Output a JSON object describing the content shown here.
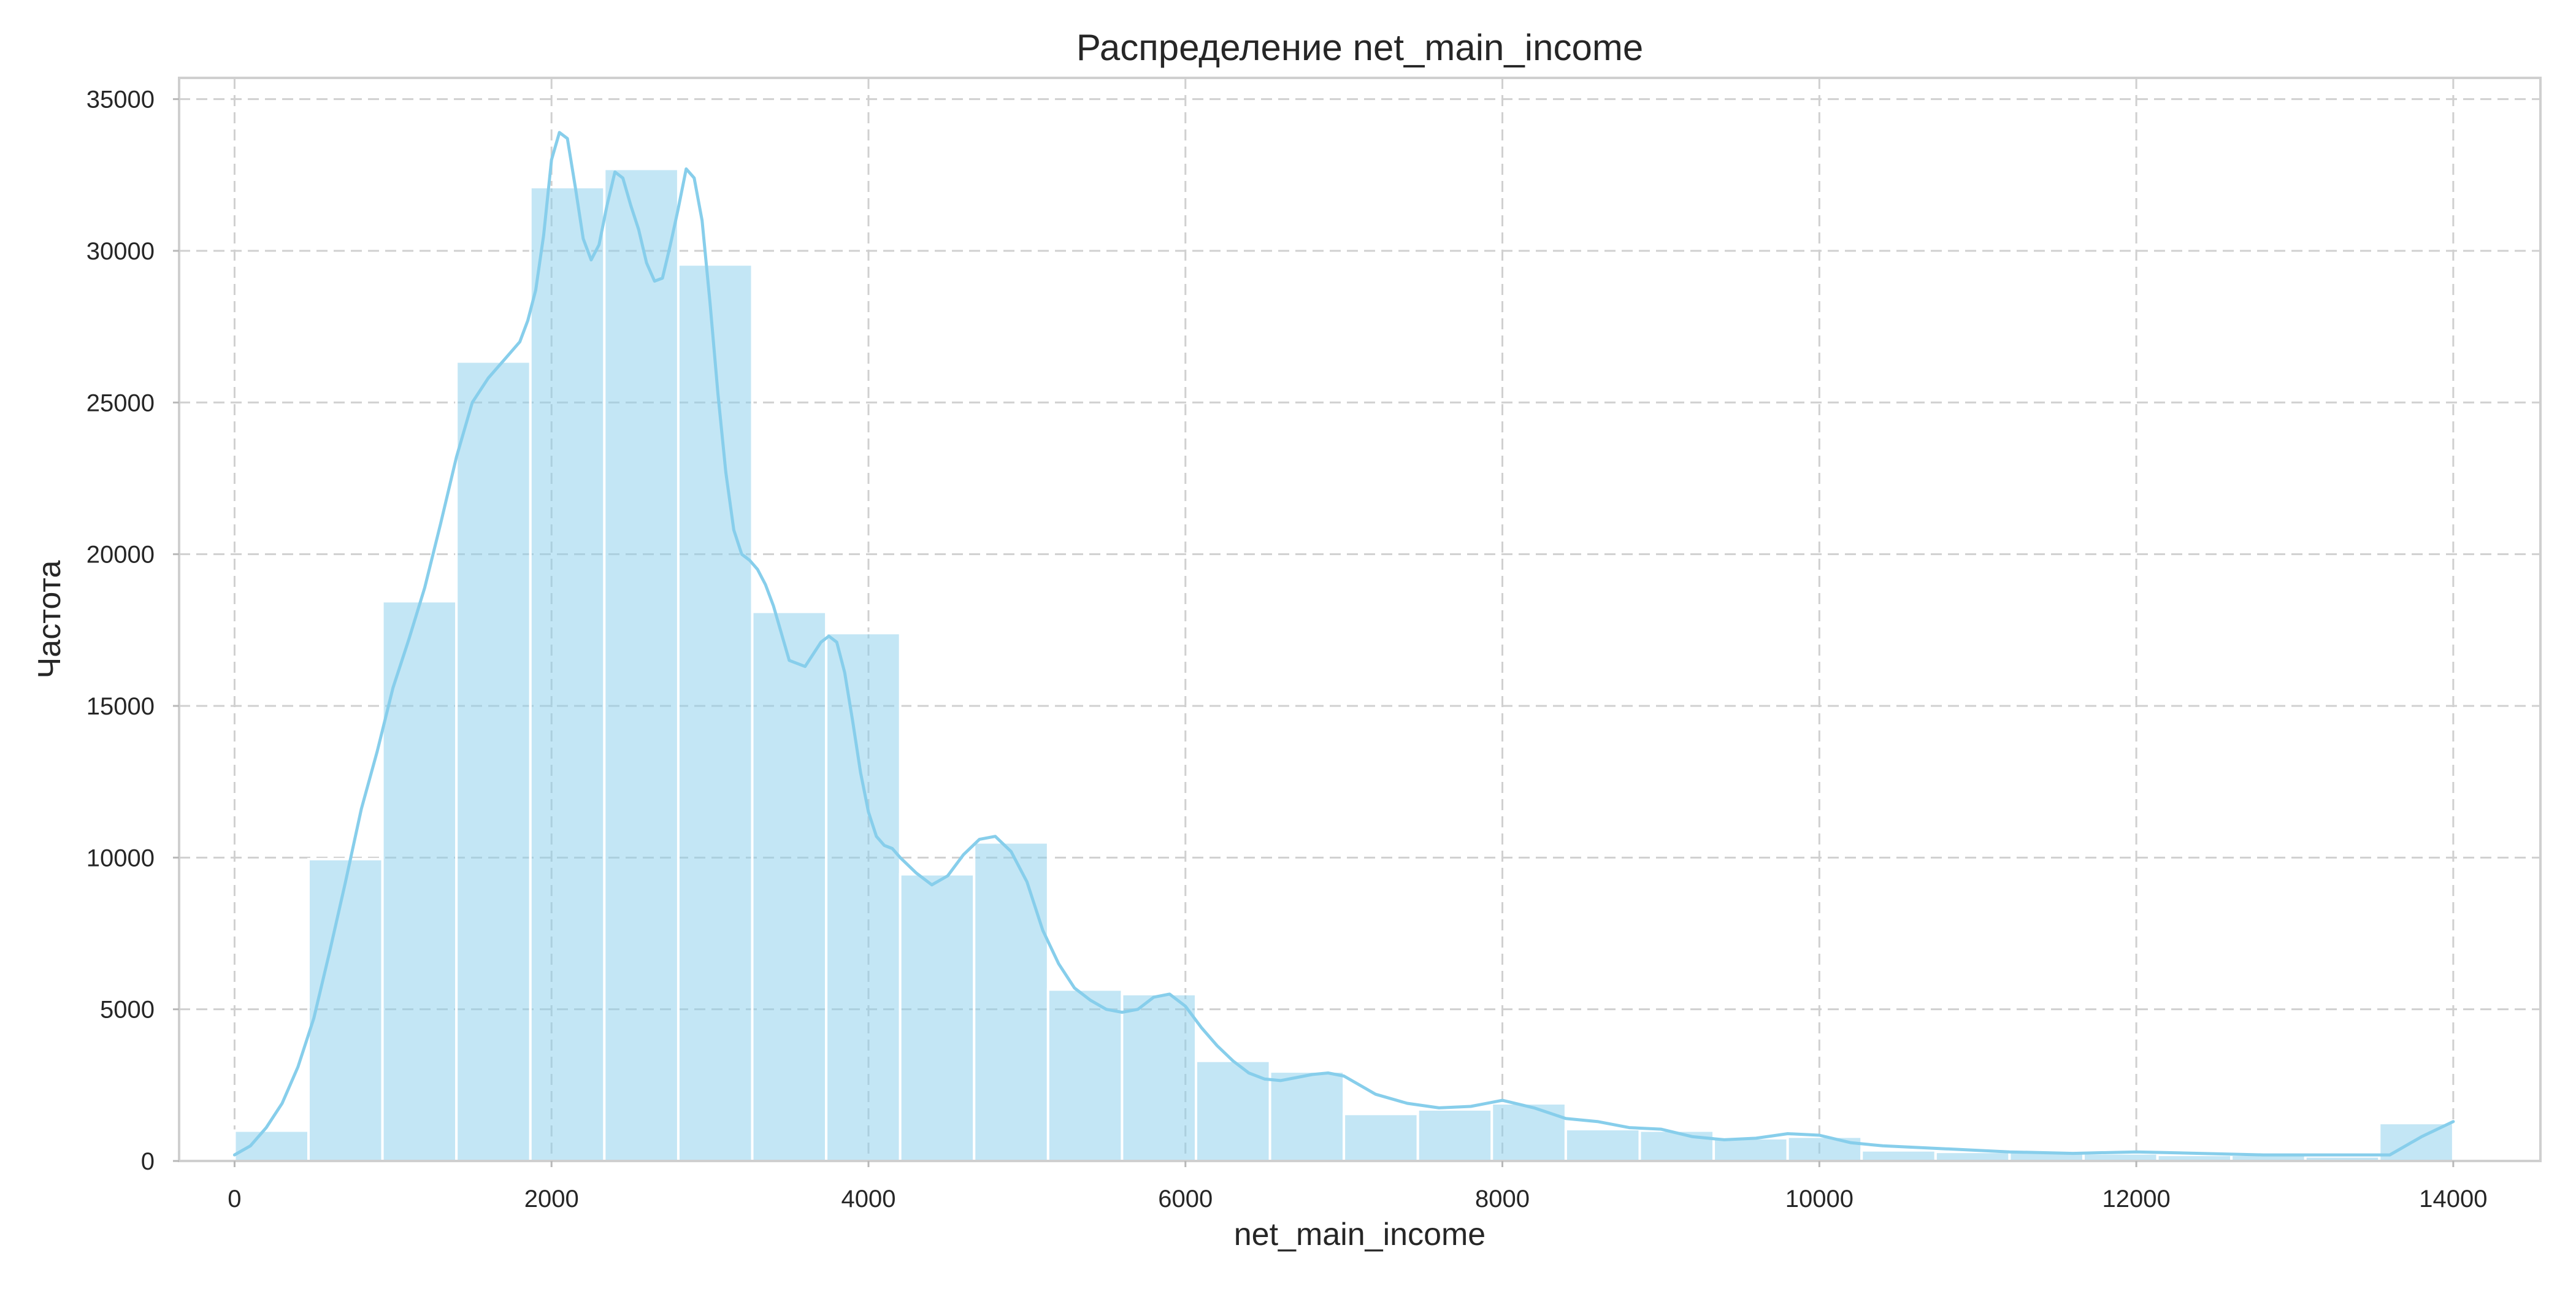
{
  "chart_data": {
    "type": "bar",
    "subtype": "histogram-with-kde",
    "title": "Распределение net_main_income",
    "xlabel": "net_main_income",
    "ylabel": "Частота",
    "xlim": [
      -350,
      14550
    ],
    "ylim": [
      0,
      35700
    ],
    "x_ticks": [
      0,
      2000,
      4000,
      6000,
      8000,
      10000,
      12000,
      14000
    ],
    "y_ticks": [
      0,
      5000,
      10000,
      15000,
      20000,
      25000,
      30000,
      35000
    ],
    "x_tick_labels": [
      "0",
      "2000",
      "4000",
      "6000",
      "8000",
      "10000",
      "12000",
      "14000"
    ],
    "y_tick_labels": [
      "0",
      "5000",
      "10000",
      "15000",
      "20000",
      "25000",
      "30000",
      "35000"
    ],
    "grid": true,
    "bar_color": "#87ceeb",
    "bar_opacity": 0.5,
    "kde_color": "#87ceeb",
    "bin_range": [
      0,
      14000
    ],
    "bin_count": 30,
    "values": [
      1000,
      9950,
      18450,
      26350,
      32100,
      32700,
      29550,
      18100,
      17400,
      9450,
      10500,
      5650,
      5500,
      3300,
      2950,
      1550,
      1700,
      1900,
      1050,
      1000,
      750,
      800,
      350,
      300,
      300,
      250,
      200,
      200,
      150,
      1250
    ],
    "kde": {
      "x": [
        0,
        100,
        200,
        300,
        400,
        500,
        600,
        700,
        800,
        900,
        1000,
        1100,
        1200,
        1300,
        1400,
        1500,
        1600,
        1700,
        1800,
        1850,
        1900,
        1950,
        2000,
        2050,
        2100,
        2150,
        2200,
        2250,
        2300,
        2350,
        2400,
        2450,
        2500,
        2550,
        2600,
        2650,
        2700,
        2750,
        2800,
        2850,
        2900,
        2950,
        3000,
        3050,
        3100,
        3150,
        3200,
        3250,
        3300,
        3350,
        3400,
        3500,
        3600,
        3650,
        3700,
        3750,
        3800,
        3850,
        3900,
        3950,
        4000,
        4050,
        4100,
        4150,
        4200,
        4300,
        4400,
        4500,
        4600,
        4700,
        4800,
        4900,
        5000,
        5100,
        5200,
        5300,
        5400,
        5500,
        5600,
        5700,
        5800,
        5900,
        6000,
        6100,
        6200,
        6300,
        6400,
        6500,
        6600,
        6700,
        6800,
        6900,
        7000,
        7100,
        7200,
        7400,
        7600,
        7800,
        8000,
        8200,
        8400,
        8600,
        8800,
        9000,
        9200,
        9400,
        9600,
        9800,
        10000,
        10200,
        10400,
        10800,
        11200,
        11600,
        12000,
        12400,
        12800,
        13200,
        13600,
        13800,
        14000
      ],
      "y": [
        200,
        500,
        1100,
        1900,
        3100,
        4700,
        6900,
        9200,
        11600,
        13500,
        15600,
        17200,
        18900,
        21000,
        23200,
        25000,
        25800,
        26400,
        27000,
        27700,
        28700,
        30500,
        33000,
        33900,
        33700,
        32100,
        30400,
        29700,
        30200,
        31500,
        32600,
        32400,
        31500,
        30700,
        29600,
        29000,
        29100,
        30200,
        31400,
        32700,
        32400,
        31000,
        28300,
        25300,
        22700,
        20800,
        20000,
        19800,
        19500,
        19000,
        18300,
        16500,
        16300,
        16700,
        17100,
        17300,
        17100,
        16100,
        14500,
        12800,
        11500,
        10700,
        10400,
        10300,
        10000,
        9500,
        9100,
        9400,
        10100,
        10600,
        10700,
        10200,
        9200,
        7600,
        6500,
        5700,
        5300,
        5000,
        4900,
        5000,
        5400,
        5500,
        5100,
        4400,
        3800,
        3300,
        2900,
        2700,
        2650,
        2750,
        2850,
        2900,
        2800,
        2500,
        2200,
        1900,
        1750,
        1800,
        2000,
        1750,
        1400,
        1300,
        1100,
        1050,
        800,
        700,
        750,
        900,
        850,
        600,
        500,
        400,
        300,
        250,
        300,
        250,
        200,
        200,
        200,
        800,
        1300
      ]
    }
  }
}
